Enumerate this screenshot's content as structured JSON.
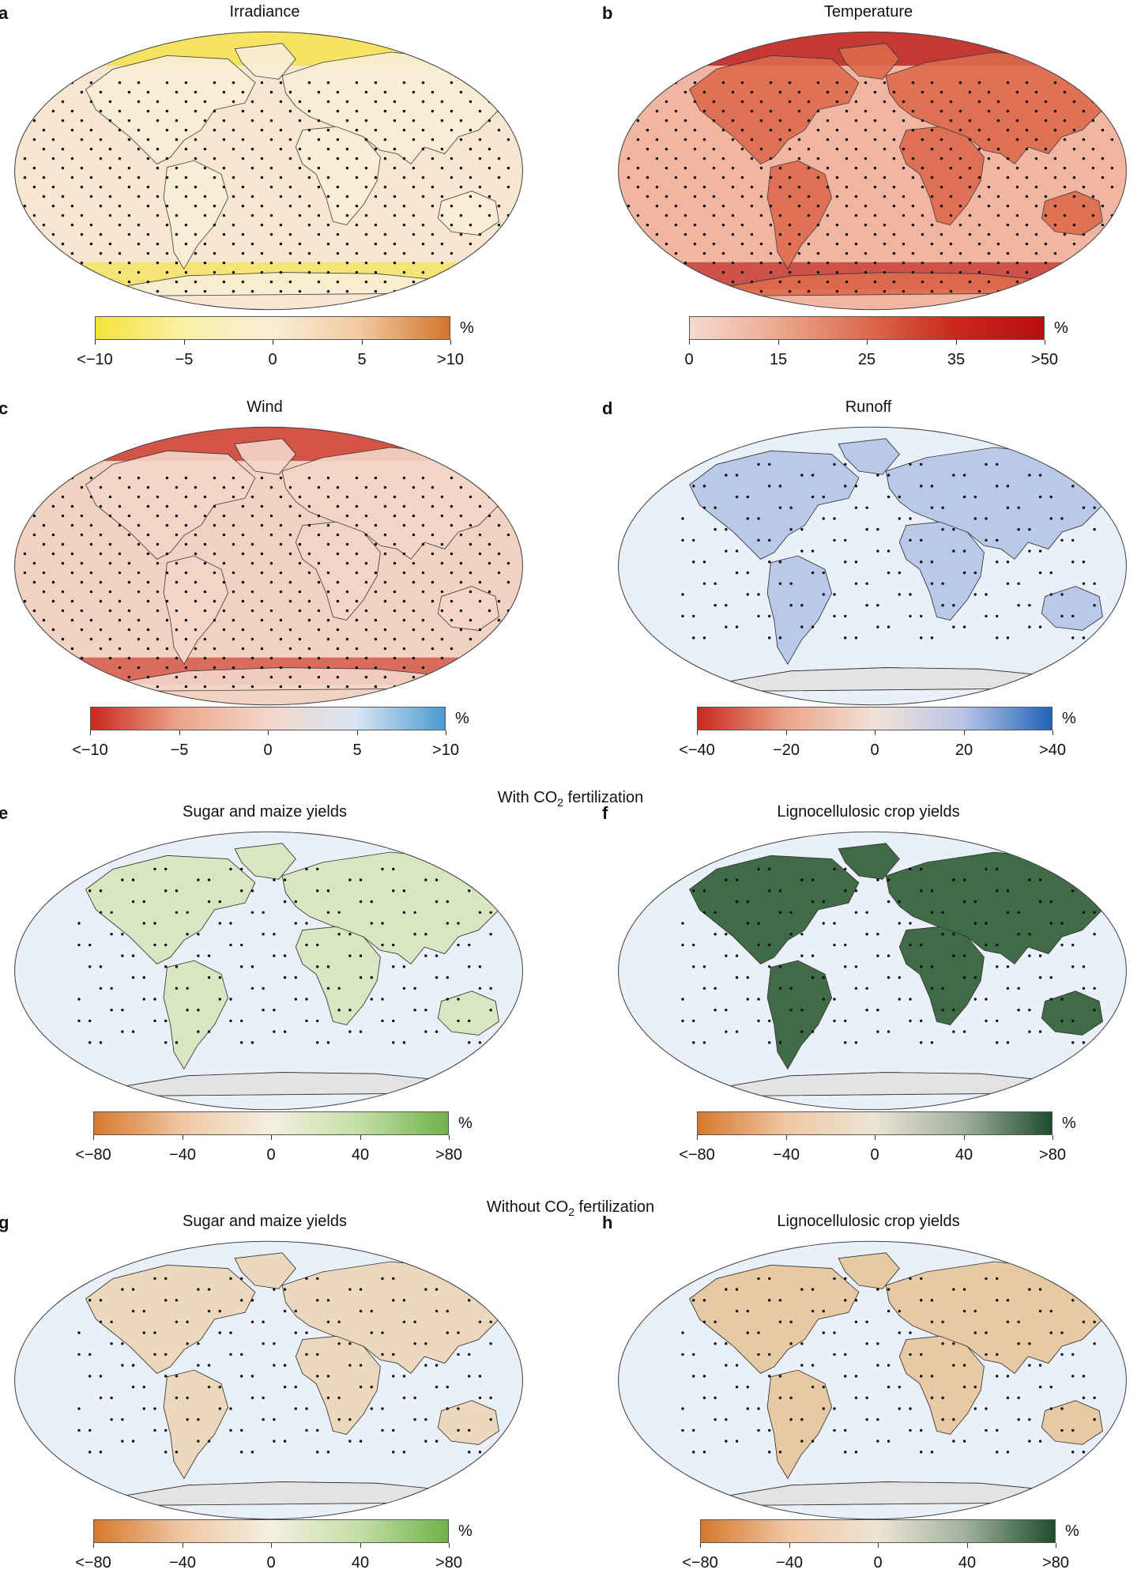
{
  "section_labels": {
    "with_co2": {
      "prefix": "With CO",
      "sub": "2",
      "suffix": " fertilization"
    },
    "without_co2": {
      "prefix": "Without CO",
      "sub": "2",
      "suffix": " fertilization"
    }
  },
  "panels": {
    "a": {
      "letter": "a",
      "title": "Irradiance",
      "unit": "%",
      "colors": [
        "#f5e33a",
        "#f8f1a6",
        "#f9eed6",
        "#f1c9a0",
        "#d5752a"
      ],
      "ticks": [
        "<−10",
        "−5",
        "0",
        "5",
        ">10"
      ],
      "map_style": "ocean-fill",
      "ocean": "#f7e6d1"
    },
    "b": {
      "letter": "b",
      "title": "Temperature",
      "unit": "%",
      "colors": [
        "#f6dacf",
        "#eca88f",
        "#dd6a4d",
        "#c8281c",
        "#b50f10"
      ],
      "ticks": [
        "0",
        "15",
        "25",
        "35",
        ">50"
      ],
      "map_style": "ocean-fill",
      "ocean": "#f0b6a1"
    },
    "c": {
      "letter": "c",
      "title": "Wind",
      "unit": "%",
      "colors": [
        "#c8281c",
        "#eca58a",
        "#f3d6c8",
        "#d7e5f3",
        "#4b9bd2"
      ],
      "ticks": [
        "<−10",
        "−5",
        "0",
        "5",
        ">10"
      ],
      "map_style": "ocean-fill",
      "ocean": "#f2d2c1"
    },
    "d": {
      "letter": "d",
      "title": "Runoff",
      "unit": "%",
      "colors": [
        "#c8281c",
        "#eba58a",
        "#f1e2d8",
        "#b9c4e8",
        "#1f65b8"
      ],
      "ticks": [
        "<−40",
        "−20",
        "0",
        "20",
        ">40"
      ],
      "map_style": "land",
      "land": "#b8c9ea"
    },
    "e": {
      "letter": "e",
      "title": "Sugar and maize yields",
      "unit": "%",
      "colors": [
        "#d6782c",
        "#f0c7a4",
        "#f4efe0",
        "#c4dea5",
        "#6fb24a"
      ],
      "ticks": [
        "<−80",
        "−40",
        "0",
        "40",
        ">80"
      ],
      "map_style": "land",
      "land": "#d9e6c2"
    },
    "f": {
      "letter": "f",
      "title": "Lignocellulosic crop yields",
      "unit": "%",
      "colors": [
        "#d6782c",
        "#f0c7a4",
        "#ece4d4",
        "#9fb09c",
        "#1e4d2b"
      ],
      "ticks": [
        "<−80",
        "−40",
        "0",
        "40",
        ">80"
      ],
      "map_style": "land",
      "land": "#3f6b46"
    },
    "g": {
      "letter": "g",
      "title": "Sugar and maize yields",
      "unit": "%",
      "colors": [
        "#d6782c",
        "#f0c7a4",
        "#f4efe0",
        "#c4dea5",
        "#6fb24a"
      ],
      "ticks": [
        "<−80",
        "−40",
        "0",
        "40",
        ">80"
      ],
      "map_style": "land",
      "land": "#ecd9bd"
    },
    "h": {
      "letter": "h",
      "title": "Lignocellulosic crop yields",
      "unit": "%",
      "colors": [
        "#d6782c",
        "#f0c7a4",
        "#ece4d4",
        "#9fb09c",
        "#1e4d2b"
      ],
      "ticks": [
        "<−80",
        "−40",
        "0",
        "40",
        ">80"
      ],
      "map_style": "land",
      "land": "#e8c9a6"
    }
  }
}
